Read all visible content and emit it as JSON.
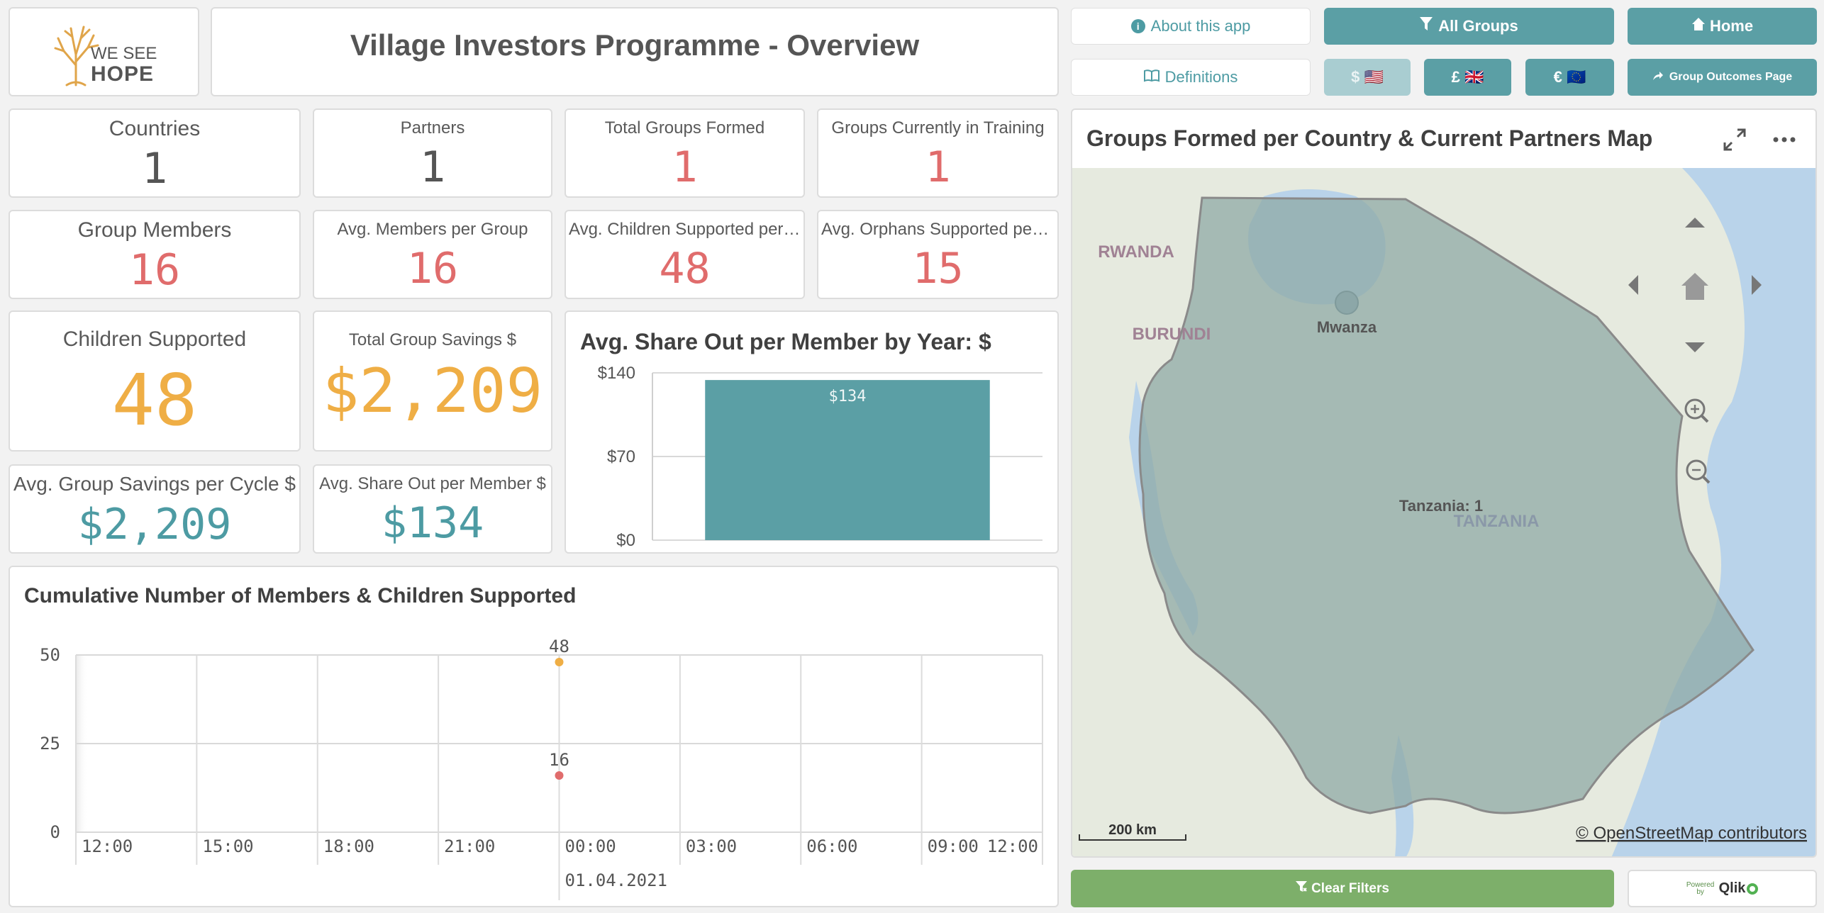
{
  "header": {
    "logo_line1": "WE SEE",
    "logo_line2": "HOPE",
    "title": "Village Investors Programme - Overview"
  },
  "toolbar": {
    "about_label": "About this app",
    "all_groups_label": "All Groups",
    "home_label": "Home",
    "definitions_label": "Definitions",
    "usd_label": "$ 🇺🇸",
    "gbp_label": "£ 🇬🇧",
    "eur_label": "€ 🇪🇺",
    "group_outcomes_label": "Group Outcomes Page"
  },
  "kpis": {
    "countries": {
      "label": "Countries",
      "value": "1"
    },
    "partners": {
      "label": "Partners",
      "value": "1"
    },
    "total_groups_formed": {
      "label": "Total Groups Formed",
      "value": "1"
    },
    "groups_in_training": {
      "label": "Groups Currently in Training",
      "value": "1"
    },
    "group_members": {
      "label": "Group Members",
      "value": "16"
    },
    "avg_members_per_group": {
      "label": "Avg. Members per Group",
      "value": "16"
    },
    "avg_children_per_group": {
      "label": "Avg. Children Supported per G...",
      "value": "48"
    },
    "avg_orphans_per_group": {
      "label": "Avg. Orphans Supported per ...",
      "value": "15"
    },
    "children_supported": {
      "label": "Children Supported",
      "value": "48"
    },
    "total_group_savings": {
      "label": "Total Group Savings $",
      "value": "$2,209"
    },
    "avg_group_savings_cycle": {
      "label": "Avg. Group Savings per Cycle $",
      "value": "$2,209"
    },
    "avg_share_out_member": {
      "label": "Avg. Share Out per Member $",
      "value": "$134"
    }
  },
  "bar_chart": {
    "title": "Avg. Share Out per Member by Year: $",
    "chart_data": {
      "type": "bar",
      "categories": [
        ""
      ],
      "values": [
        134
      ],
      "data_labels": [
        "$134"
      ],
      "y_ticks": [
        "$0",
        "$70",
        "$140"
      ],
      "ylim": [
        0,
        140
      ],
      "color": "#5b9fa5",
      "grid": true
    }
  },
  "line_chart": {
    "title": "Cumulative Number of Members & Children Supported",
    "chart_data": {
      "type": "scatter",
      "x_ticks": [
        "12:00",
        "15:00",
        "18:00",
        "21:00",
        "00:00",
        "03:00",
        "06:00",
        "09:00",
        "12:00"
      ],
      "x_date_label": "01.04.2021",
      "y_ticks": [
        "0",
        "25",
        "50"
      ],
      "ylim": [
        0,
        50
      ],
      "series": [
        {
          "x": "01.04.2021 00:00",
          "values": [
            48
          ],
          "color": "#efae45"
        },
        {
          "x": "01.04.2021 00:00",
          "values": [
            16
          ],
          "color": "#e06c6c"
        }
      ],
      "grid": true
    }
  },
  "map": {
    "title": "Groups Formed per Country & Current Partners Map",
    "labels": {
      "rwanda": "RWANDA",
      "burundi": "BURUNDI",
      "mwanza": "Mwanza",
      "tanzania": "TANZANIA",
      "tanzania_count": "Tanzania: 1"
    },
    "scale_label": "200 km",
    "attribution": "© OpenStreetMap contributors",
    "colors": {
      "land": "#e6eadf",
      "water": "#b9d3ea",
      "country_fill": "#8fa9a6"
    }
  },
  "footer": {
    "clear_filters_label": "Clear Filters",
    "powered_by_small": "Powered by",
    "qlik_label": "Qlik"
  }
}
